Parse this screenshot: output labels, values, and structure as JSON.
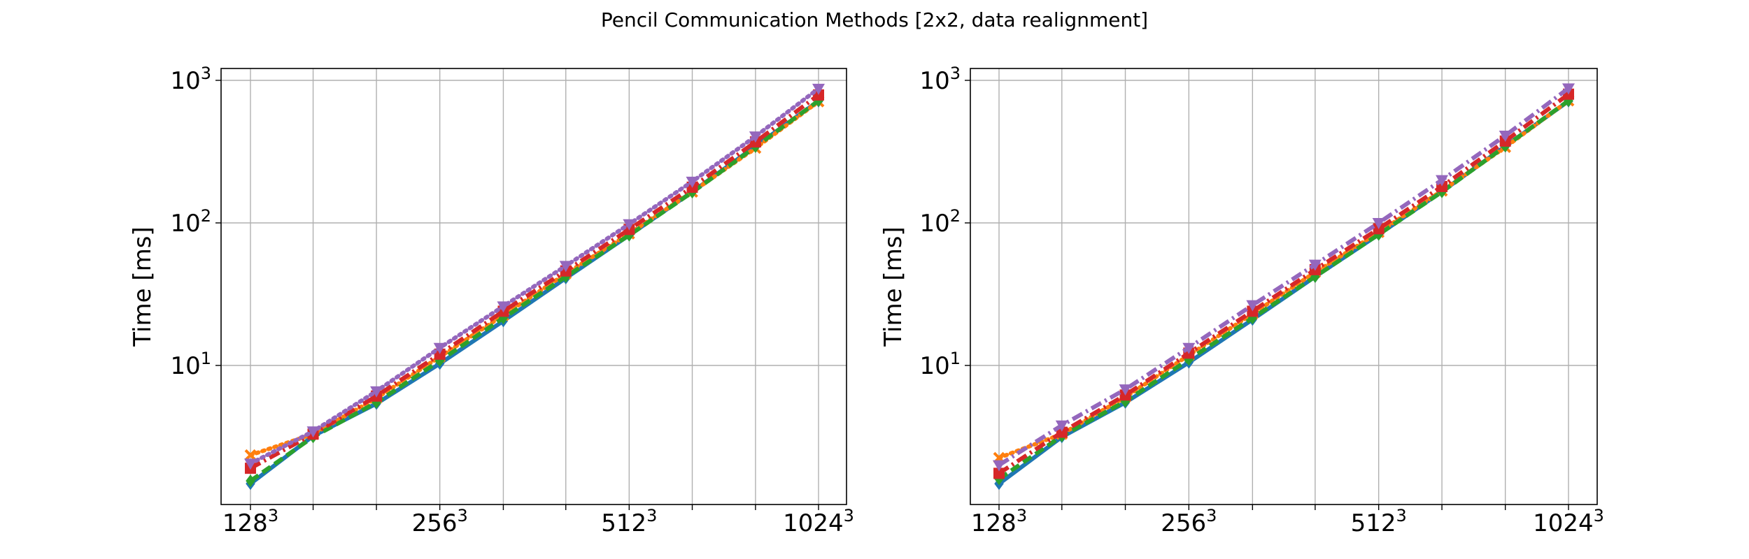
{
  "title": "Pencil Communication Methods [2x2, data realignment]",
  "colors": {
    "series": [
      "#1f77b4",
      "#ff7f0e",
      "#2ca02c",
      "#d62728",
      "#9467bd"
    ],
    "grid": "#b0b0b0"
  },
  "chart_data": [
    {
      "type": "line",
      "title": "",
      "xlabel": "",
      "ylabel": "Time [ms]",
      "xscale": "log2",
      "yscale": "log",
      "ylim": [
        1.25,
        1200
      ],
      "grid": true,
      "x": [
        128,
        161,
        203,
        256,
        323,
        406,
        512,
        645,
        813,
        1024
      ],
      "x_tick_labels": [
        {
          "x": 128,
          "base": "128",
          "exp": "3"
        },
        {
          "x": 256,
          "base": "256",
          "exp": "3"
        },
        {
          "x": 512,
          "base": "512",
          "exp": "3"
        },
        {
          "x": 1024,
          "base": "1024",
          "exp": "3"
        }
      ],
      "y_tick_labels": [
        {
          "y": 10,
          "base": "10",
          "exp": "1"
        },
        {
          "y": 100,
          "base": "10",
          "exp": "2"
        },
        {
          "y": 1000,
          "base": "10",
          "exp": "3"
        }
      ],
      "series": [
        {
          "color": "#1f77b4",
          "marker": "diamond",
          "dash": "solid",
          "values": [
            1.48,
            3.2,
            5.4,
            10.3,
            20.5,
            41,
            82,
            165,
            345,
            715
          ]
        },
        {
          "color": "#ff7f0e",
          "marker": "x",
          "dash": "dotted",
          "values": [
            2.35,
            3.3,
            5.9,
            11.5,
            22.5,
            44,
            84,
            165,
            335,
            710
          ]
        },
        {
          "color": "#2ca02c",
          "marker": "diamond",
          "dash": "dashed",
          "values": [
            1.55,
            3.15,
            5.5,
            10.8,
            21.5,
            42,
            82,
            164,
            342,
            720
          ]
        },
        {
          "color": "#d62728",
          "marker": "square",
          "dash": "dashdot",
          "values": [
            1.9,
            3.3,
            6.1,
            12.0,
            24.0,
            46,
            90,
            178,
            370,
            790
          ]
        },
        {
          "color": "#9467bd",
          "marker": "triangle-down",
          "dash": "dotted",
          "values": [
            2.05,
            3.45,
            6.6,
            13.3,
            26.0,
            50,
            98,
            195,
            405,
            875
          ]
        }
      ]
    },
    {
      "type": "line",
      "title": "",
      "xlabel": "",
      "ylabel": "Time [ms]",
      "xscale": "log2",
      "yscale": "log",
      "ylim": [
        1.25,
        1200
      ],
      "grid": true,
      "x": [
        128,
        161,
        203,
        256,
        323,
        406,
        512,
        645,
        813,
        1024
      ],
      "x_tick_labels": [
        {
          "x": 128,
          "base": "128",
          "exp": "3"
        },
        {
          "x": 256,
          "base": "256",
          "exp": "3"
        },
        {
          "x": 512,
          "base": "512",
          "exp": "3"
        },
        {
          "x": 1024,
          "base": "1024",
          "exp": "3"
        }
      ],
      "y_tick_labels": [
        {
          "y": 10,
          "base": "10",
          "exp": "1"
        },
        {
          "y": 100,
          "base": "10",
          "exp": "2"
        },
        {
          "y": 1000,
          "base": "10",
          "exp": "3"
        }
      ],
      "series": [
        {
          "color": "#1f77b4",
          "marker": "diamond",
          "dash": "solid",
          "values": [
            1.48,
            3.15,
            5.5,
            10.5,
            21,
            42,
            83,
            166,
            345,
            715
          ]
        },
        {
          "color": "#ff7f0e",
          "marker": "x",
          "dash": "dotted",
          "values": [
            2.25,
            3.3,
            6.0,
            11.8,
            23,
            45,
            86,
            168,
            340,
            720
          ]
        },
        {
          "color": "#2ca02c",
          "marker": "diamond",
          "dash": "dashed",
          "values": [
            1.6,
            3.2,
            5.6,
            11.0,
            21.5,
            42,
            83,
            165,
            345,
            720
          ]
        },
        {
          "color": "#d62728",
          "marker": "square",
          "dash": "dashdot",
          "values": [
            1.75,
            3.4,
            6.2,
            12.2,
            24,
            47,
            91,
            180,
            375,
            800
          ]
        },
        {
          "color": "#9467bd",
          "marker": "triangle-down",
          "dash": "dashdot",
          "values": [
            2.0,
            3.8,
            6.8,
            13.3,
            26.5,
            51,
            100,
            200,
            410,
            880
          ]
        }
      ]
    }
  ]
}
